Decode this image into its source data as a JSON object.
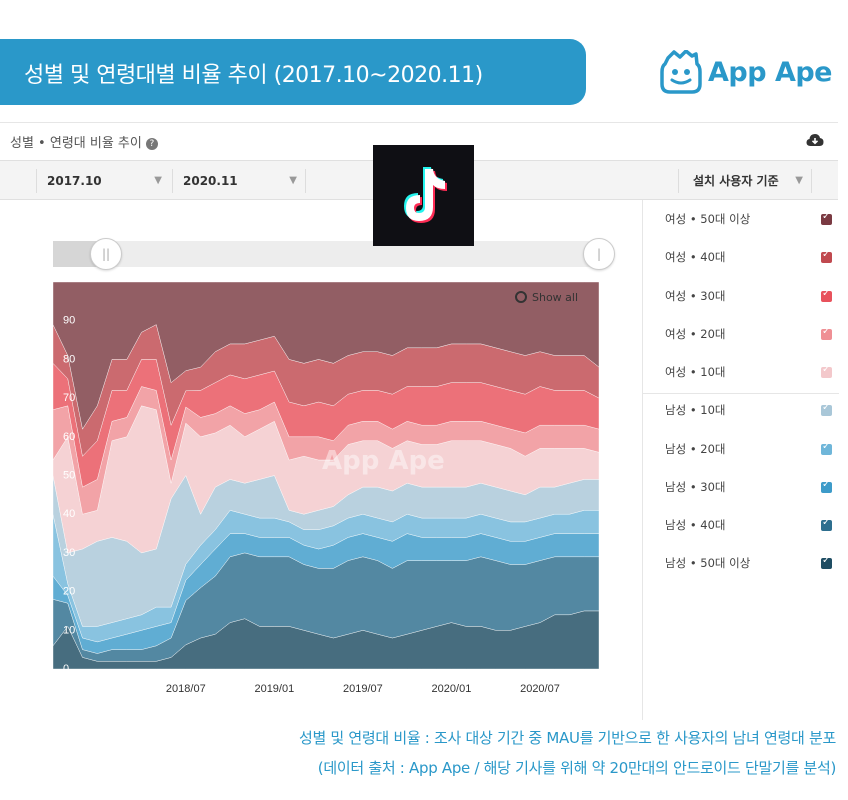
{
  "header": {
    "title": "성별 및 연령대별 비율 추이 (2017.10~2020.11)",
    "brand": "App Ape",
    "brand_color": "#2a98c9"
  },
  "panel": {
    "title": "성별 • 연령대 비율 추이",
    "help_icon": "question-icon",
    "download_icon": "cloud-download-icon"
  },
  "filters": {
    "start": "2017.10",
    "end": "2020.11",
    "basis": "설치 사용자 기준"
  },
  "show_all": "Show all",
  "watermark": "App Ape",
  "legend": [
    {
      "label": "여성 • 50대 이상",
      "color": "#7a3a42"
    },
    {
      "label": "여성 • 40대",
      "color": "#c0494f"
    },
    {
      "label": "여성 • 30대",
      "color": "#e8525c"
    },
    {
      "label": "여성 • 20대",
      "color": "#ef8f94"
    },
    {
      "label": "여성 • 10대",
      "color": "#f3c8cb"
    },
    {
      "label": "남성 • 10대",
      "color": "#a9c7d8"
    },
    {
      "label": "남성 • 20대",
      "color": "#6fb6d9"
    },
    {
      "label": "남성 • 30대",
      "color": "#3d9bc9"
    },
    {
      "label": "남성 • 40대",
      "color": "#2d6e8e"
    },
    {
      "label": "남성 • 50대 이상",
      "color": "#1f4d63"
    }
  ],
  "caption": {
    "line1": "성별 및 연령대 비율 : 조사 대상 기간 중 MAU를 기반으로 한 사용자의 남녀 연령대 분포",
    "line2": "(데이터 출처 : App Ape / 해당 기사를 위해 약 20만대의 안드로이드 단말기를 분석)"
  },
  "chart_data": {
    "type": "area",
    "stacked": true,
    "x": [
      "2017.10",
      "2017.11",
      "2017.12",
      "2018.01",
      "2018.02",
      "2018.03",
      "2018.04",
      "2018.05",
      "2018.06",
      "2018.07",
      "2018.08",
      "2018.09",
      "2018.10",
      "2018.11",
      "2018.12",
      "2019.01",
      "2019.02",
      "2019.03",
      "2019.04",
      "2019.05",
      "2019.06",
      "2019.07",
      "2019.08",
      "2019.09",
      "2019.10",
      "2019.11",
      "2019.12",
      "2020.01",
      "2020.02",
      "2020.03",
      "2020.04",
      "2020.05",
      "2020.06",
      "2020.07",
      "2020.08",
      "2020.09",
      "2020.10",
      "2020.11"
    ],
    "x_tick_labels": [
      "2018/07",
      "2019/01",
      "2019/07",
      "2020/01",
      "2020/07"
    ],
    "y_ticks": [
      0,
      10,
      20,
      30,
      40,
      50,
      60,
      70,
      80,
      90
    ],
    "ylim": [
      0,
      100
    ],
    "series_order_bottom_to_top": [
      "남성 • 50대 이상",
      "남성 • 40대",
      "남성 • 30대",
      "남성 • 20대",
      "남성 • 10대",
      "여성 • 10대",
      "여성 • 20대",
      "여성 • 30대",
      "여성 • 40대",
      "여성 • 50대 이상"
    ],
    "series": [
      {
        "name": "남성 • 50대 이상",
        "values": [
          6,
          11,
          3,
          2,
          2,
          2,
          2,
          2,
          3,
          6,
          8,
          9,
          12,
          13,
          11,
          11,
          11,
          10,
          9,
          8,
          9,
          10,
          9,
          8,
          9,
          10,
          11,
          12,
          11,
          11,
          10,
          10,
          11,
          12,
          14,
          14,
          15,
          15
        ]
      },
      {
        "name": "남성 • 40대",
        "values": [
          12,
          6,
          2,
          2,
          3,
          3,
          3,
          4,
          5,
          11,
          13,
          15,
          17,
          17,
          18,
          18,
          18,
          17,
          17,
          18,
          19,
          19,
          19,
          18,
          19,
          18,
          17,
          16,
          17,
          18,
          18,
          17,
          16,
          16,
          15,
          15,
          14,
          14
        ]
      },
      {
        "name": "남성 • 30대",
        "values": [
          6,
          2,
          3,
          3,
          3,
          4,
          5,
          5,
          4,
          5,
          6,
          7,
          6,
          5,
          5,
          5,
          5,
          5,
          5,
          6,
          6,
          6,
          6,
          7,
          7,
          6,
          6,
          6,
          6,
          6,
          6,
          6,
          6,
          6,
          6,
          6,
          6,
          6
        ]
      },
      {
        "name": "남성 • 20대",
        "values": [
          16,
          3,
          3,
          4,
          4,
          4,
          4,
          5,
          4,
          4,
          5,
          5,
          6,
          5,
          5,
          5,
          4,
          4,
          5,
          5,
          5,
          5,
          5,
          5,
          5,
          5,
          5,
          5,
          5,
          5,
          5,
          5,
          5,
          5,
          5,
          5,
          6,
          6
        ]
      },
      {
        "name": "남성 • 10대",
        "values": [
          10,
          8,
          20,
          22,
          22,
          20,
          16,
          15,
          28,
          22,
          8,
          11,
          8,
          8,
          10,
          11,
          3,
          4,
          5,
          5,
          6,
          7,
          8,
          8,
          8,
          8,
          8,
          8,
          8,
          8,
          8,
          8,
          7,
          8,
          7,
          8,
          8,
          8
        ]
      },
      {
        "name": "여성 • 10대",
        "values": [
          4,
          30,
          9,
          8,
          25,
          27,
          38,
          36,
          4,
          13,
          20,
          14,
          14,
          12,
          13,
          14,
          13,
          15,
          13,
          12,
          13,
          12,
          12,
          11,
          11,
          11,
          11,
          12,
          12,
          11,
          11,
          11,
          10,
          10,
          10,
          9,
          8,
          7
        ]
      },
      {
        "name": "여성 • 20대",
        "values": [
          13,
          8,
          7,
          8,
          5,
          5,
          5,
          5,
          6,
          4,
          5,
          5,
          5,
          6,
          5,
          5,
          6,
          5,
          6,
          5,
          5,
          5,
          5,
          5,
          5,
          5,
          5,
          5,
          5,
          5,
          5,
          5,
          6,
          6,
          6,
          6,
          6,
          6
        ]
      },
      {
        "name": "여성 • 30대",
        "values": [
          12,
          7,
          8,
          10,
          8,
          7,
          7,
          8,
          9,
          4,
          7,
          8,
          8,
          9,
          9,
          8,
          9,
          8,
          9,
          9,
          8,
          8,
          8,
          9,
          9,
          10,
          10,
          10,
          10,
          10,
          10,
          10,
          10,
          10,
          9,
          9,
          9,
          8
        ]
      },
      {
        "name": "여성 • 40대",
        "values": [
          10,
          6,
          7,
          9,
          8,
          8,
          7,
          9,
          11,
          5,
          6,
          8,
          8,
          9,
          9,
          9,
          11,
          11,
          11,
          11,
          10,
          10,
          10,
          10,
          10,
          10,
          10,
          10,
          10,
          10,
          10,
          10,
          10,
          9,
          9,
          9,
          9,
          8
        ]
      },
      {
        "name": "여성 • 50대 이상",
        "values": [
          11,
          19,
          38,
          32,
          20,
          20,
          13,
          11,
          26,
          22,
          22,
          18,
          16,
          16,
          15,
          14,
          20,
          21,
          20,
          21,
          19,
          18,
          18,
          19,
          17,
          17,
          17,
          16,
          16,
          16,
          17,
          18,
          19,
          18,
          19,
          19,
          19,
          22
        ]
      }
    ]
  }
}
